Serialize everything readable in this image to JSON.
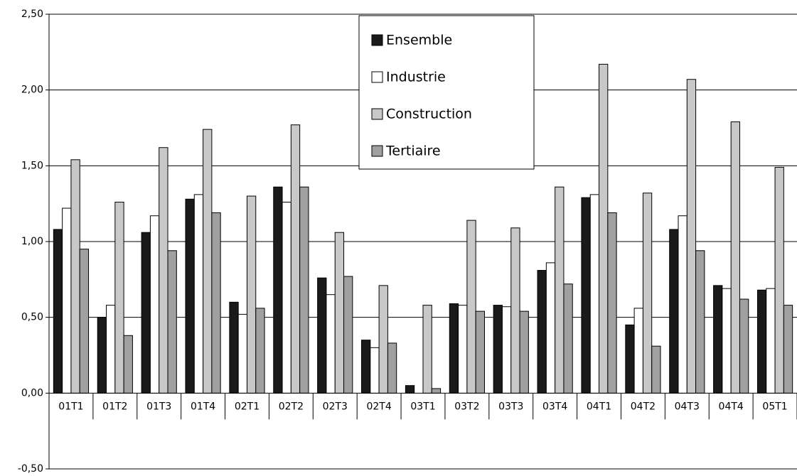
{
  "chart_data": {
    "type": "bar",
    "categories": [
      "01T1",
      "01T2",
      "01T3",
      "01T4",
      "02T1",
      "02T2",
      "02T3",
      "02T4",
      "03T1",
      "03T2",
      "03T3",
      "03T4",
      "04T1",
      "04T2",
      "04T3",
      "04T4",
      "05T1"
    ],
    "series": [
      {
        "name": "Ensemble",
        "color": "#1a1a1a",
        "values": [
          1.08,
          0.5,
          1.06,
          1.28,
          0.6,
          1.36,
          0.76,
          0.35,
          0.05,
          0.59,
          0.58,
          0.81,
          1.29,
          0.45,
          1.08,
          0.71,
          0.68
        ]
      },
      {
        "name": "Industrie",
        "color": "#ffffff",
        "values": [
          1.22,
          0.58,
          1.17,
          1.31,
          0.52,
          1.26,
          0.65,
          0.3,
          0.0,
          0.58,
          0.57,
          0.86,
          1.31,
          0.56,
          1.17,
          0.69,
          0.69
        ]
      },
      {
        "name": "Construction",
        "color": "#c8c8c8",
        "values": [
          1.54,
          1.26,
          1.62,
          1.74,
          1.3,
          1.77,
          1.06,
          0.71,
          0.58,
          1.14,
          1.09,
          1.36,
          2.17,
          1.32,
          2.07,
          1.79,
          1.49
        ]
      },
      {
        "name": "Tertiaire",
        "color": "#a0a0a0",
        "values": [
          0.95,
          0.38,
          0.94,
          1.19,
          0.56,
          1.36,
          0.77,
          0.33,
          0.03,
          0.54,
          0.54,
          0.72,
          1.19,
          0.31,
          0.94,
          0.62,
          0.58
        ]
      }
    ],
    "ylim": [
      -0.5,
      2.5
    ],
    "yticks": [
      {
        "value": -0.5,
        "label": "-0,50"
      },
      {
        "value": 0,
        "label": "0,00"
      },
      {
        "value": 0.5,
        "label": "0,50"
      },
      {
        "value": 1,
        "label": "1,00"
      },
      {
        "value": 1.5,
        "label": "1,50"
      },
      {
        "value": 2,
        "label": "2,00"
      },
      {
        "value": 2.5,
        "label": "2,50"
      }
    ],
    "grid": true,
    "legend": "top"
  }
}
